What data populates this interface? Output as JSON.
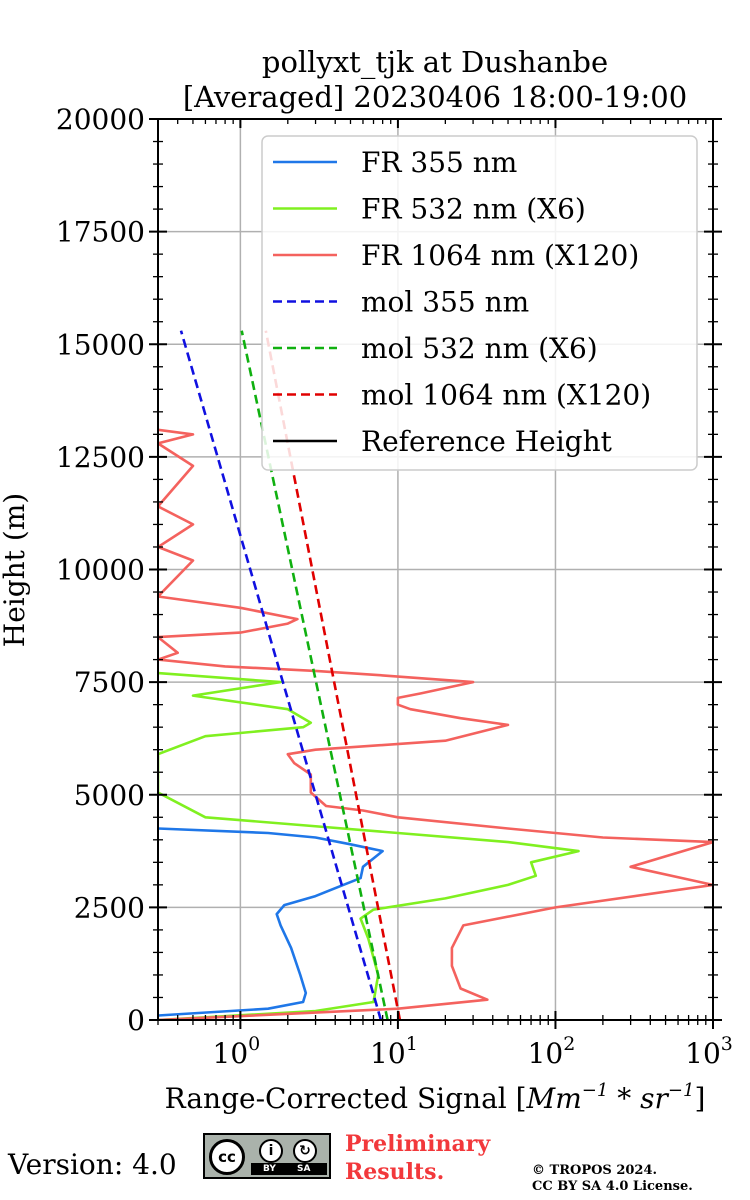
{
  "chart_data": {
    "type": "line",
    "title": [
      "pollyxt_tjk at Dushanbe",
      "[Averaged] 20230406 18:00-19:00"
    ],
    "xlabel_text": "Range-Corrected Signal [",
    "xlabel_math": "Mm",
    "xlabel_exp1": "−1",
    "xlabel_mid": " * sr",
    "xlabel_exp2": "−1",
    "xlabel_close": "]",
    "ylabel": "Height (m)",
    "xscale": "log",
    "xlim": [
      0.3,
      1000
    ],
    "ylim": [
      0,
      20000
    ],
    "x_ticks": [
      {
        "value": 1,
        "base": "10",
        "exp": "0"
      },
      {
        "value": 10,
        "base": "10",
        "exp": "1"
      },
      {
        "value": 100,
        "base": "10",
        "exp": "2"
      },
      {
        "value": 1000,
        "base": "10",
        "exp": "3"
      }
    ],
    "y_ticks": [
      "0",
      "2500",
      "5000",
      "7500",
      "10000",
      "12500",
      "15000",
      "17500",
      "20000"
    ],
    "grid": true,
    "legend_position": "top-right",
    "series": [
      {
        "name": "FR 355 nm",
        "color": "#1f77e8",
        "dash": "solid",
        "points": [
          [
            0.3,
            100
          ],
          [
            1.5,
            250
          ],
          [
            2.5,
            400
          ],
          [
            2.6,
            600
          ],
          [
            2.4,
            1000
          ],
          [
            2.1,
            1600
          ],
          [
            1.8,
            2100
          ],
          [
            1.7,
            2350
          ],
          [
            1.9,
            2550
          ],
          [
            3,
            2750
          ],
          [
            4.5,
            3000
          ],
          [
            5.8,
            3150
          ],
          [
            6,
            3400
          ],
          [
            8,
            3750
          ],
          [
            5,
            3900
          ],
          [
            3,
            4050
          ],
          [
            1.5,
            4150
          ],
          [
            0.3,
            4250
          ]
        ]
      },
      {
        "name": "FR 532 nm (X6)",
        "color": "#80f020",
        "dash": "solid",
        "points": [
          [
            0.3,
            0
          ],
          [
            3,
            200
          ],
          [
            7,
            400
          ],
          [
            7.5,
            1000
          ],
          [
            6.5,
            1800
          ],
          [
            5.8,
            2250
          ],
          [
            7,
            2450
          ],
          [
            20,
            2700
          ],
          [
            50,
            3000
          ],
          [
            75,
            3200
          ],
          [
            70,
            3500
          ],
          [
            140,
            3750
          ],
          [
            50,
            3950
          ],
          [
            10,
            4150
          ],
          [
            2,
            4350
          ],
          [
            0.6,
            4500
          ],
          [
            0.3,
            5050
          ],
          [
            0.3,
            5900
          ],
          [
            0.6,
            6300
          ],
          [
            2.5,
            6500
          ],
          [
            2.8,
            6600
          ],
          [
            2,
            6900
          ],
          [
            0.5,
            7200
          ],
          [
            1.8,
            7500
          ],
          [
            0.3,
            7700
          ]
        ]
      },
      {
        "name": "FR 1064 nm (X120)",
        "color": "#f4625e",
        "dash": "solid",
        "points": [
          [
            0.3,
            0
          ],
          [
            10,
            250
          ],
          [
            37,
            450
          ],
          [
            25,
            700
          ],
          [
            22,
            1200
          ],
          [
            22,
            1600
          ],
          [
            26,
            2100
          ],
          [
            100,
            2500
          ],
          [
            1000,
            3000
          ],
          [
            300,
            3400
          ],
          [
            1000,
            3950
          ],
          [
            200,
            4050
          ],
          [
            50,
            4250
          ],
          [
            10,
            4500
          ],
          [
            6,
            4650
          ],
          [
            3.5,
            4750
          ],
          [
            2.8,
            5050
          ],
          [
            2.8,
            5450
          ],
          [
            2.2,
            5700
          ],
          [
            2,
            5900
          ],
          [
            3,
            6000
          ],
          [
            20,
            6200
          ],
          [
            50,
            6550
          ],
          [
            25,
            6700
          ],
          [
            12,
            6900
          ],
          [
            10,
            7000
          ],
          [
            10,
            7150
          ],
          [
            14,
            7250
          ],
          [
            30,
            7500
          ],
          [
            8,
            7650
          ],
          [
            3,
            7750
          ],
          [
            0.8,
            7850
          ],
          [
            0.3,
            8000
          ],
          [
            0.4,
            8150
          ],
          [
            0.3,
            8500
          ],
          [
            1,
            8600
          ],
          [
            2,
            8800
          ],
          [
            2.3,
            8900
          ],
          [
            1,
            9150
          ],
          [
            0.3,
            9400
          ],
          [
            0.5,
            10200
          ],
          [
            0.3,
            10500
          ],
          [
            0.5,
            11000
          ],
          [
            0.3,
            11400
          ],
          [
            0.5,
            12300
          ],
          [
            0.3,
            12800
          ],
          [
            0.5,
            13000
          ],
          [
            0.3,
            13100
          ]
        ]
      },
      {
        "name": "mol 355 nm",
        "color": "#1010e0",
        "dash": "dashed",
        "points": [
          [
            7.8,
            0
          ],
          [
            0.42,
            15300
          ]
        ]
      },
      {
        "name": "mol 532 nm (X6)",
        "color": "#10b010",
        "dash": "dashed",
        "points": [
          [
            8.6,
            0
          ],
          [
            1.02,
            15300
          ]
        ]
      },
      {
        "name": "mol 1064 nm (X120)",
        "color": "#e00000",
        "dash": "dashed",
        "points": [
          [
            10.3,
            0
          ],
          [
            1.45,
            15300
          ]
        ]
      },
      {
        "name": "Reference Height",
        "color": "#000000",
        "dash": "solid",
        "points": []
      }
    ]
  },
  "footer": {
    "version": "Version: 4.0",
    "license_badge": {
      "cc": "cc",
      "by": "BY",
      "sa": "SA",
      "by_icon": "i",
      "sa_icon": "↻"
    },
    "preliminary_line1": "Preliminary",
    "preliminary_line2": "Results.",
    "copyright_line1": "© TROPOS 2024.",
    "copyright_line2": "CC BY SA 4.0 License."
  }
}
